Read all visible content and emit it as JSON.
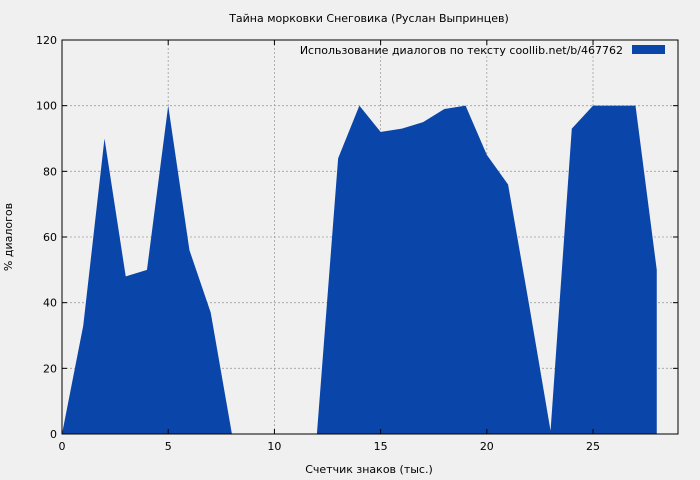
{
  "chart_data": {
    "type": "area",
    "title": "Тайна морковки Снеговика (Руслан Выпринцев)",
    "xlabel": "Счетчик знаков (тыс.)",
    "ylabel": "% диалогов",
    "xlim": [
      0,
      29
    ],
    "ylim": [
      0,
      120
    ],
    "x_ticks": [
      0,
      5,
      10,
      15,
      20,
      25
    ],
    "y_ticks": [
      0,
      20,
      40,
      60,
      80,
      100,
      120
    ],
    "grid": true,
    "legend_position": "top-right",
    "colors": {
      "series": "#0a46aa",
      "background": "#f0f0f0",
      "grid": "#a0a0a0"
    },
    "series": [
      {
        "name": "Использование диалогов по тексту  coollib.net/b/467762",
        "x": [
          0,
          1,
          2,
          3,
          4,
          5,
          6,
          7,
          8,
          9,
          10,
          11,
          12,
          13,
          14,
          15,
          16,
          17,
          18,
          19,
          20,
          21,
          22,
          23,
          24,
          25,
          26,
          27,
          28
        ],
        "values": [
          0,
          33,
          90,
          48,
          50,
          100,
          56,
          37,
          0,
          0,
          0,
          0,
          0,
          84,
          100,
          92,
          93,
          95,
          99,
          100,
          85,
          76,
          39,
          1,
          93,
          100,
          100,
          100,
          50
        ]
      }
    ]
  }
}
